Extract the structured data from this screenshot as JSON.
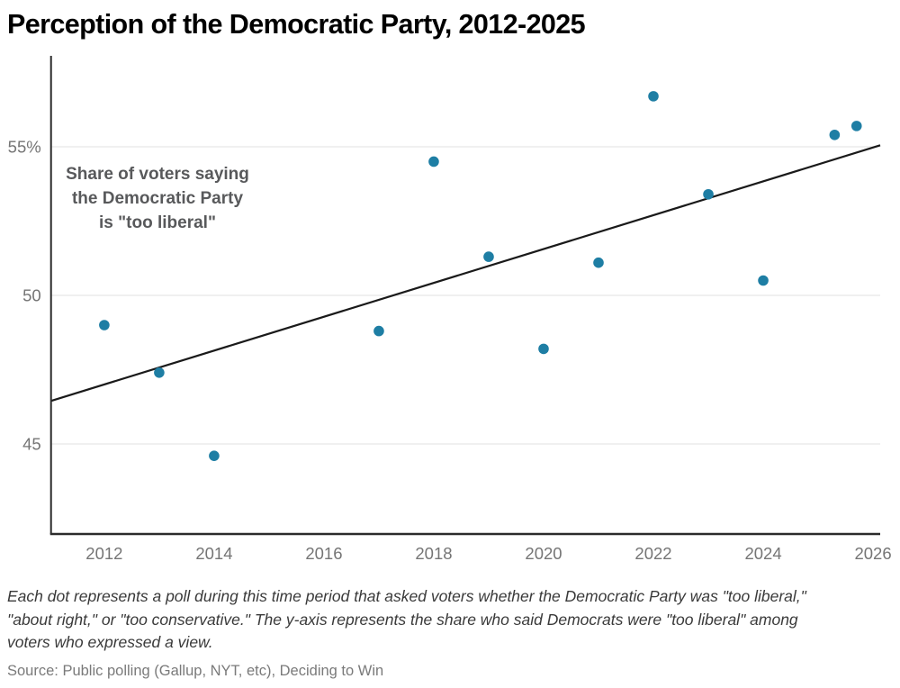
{
  "title": "Perception of the Democratic Party, 2012-2025",
  "chart_data": {
    "type": "scatter",
    "title": "Perception of the Democratic Party, 2012-2025",
    "annotation": "Share of voters saying\nthe Democratic Party\nis \"too liberal\"",
    "ylabel_note": "Share of voters saying the Democratic Party is \"too liberal\" (%)",
    "points": [
      {
        "x": 2012,
        "y": 49.0
      },
      {
        "x": 2013,
        "y": 47.4
      },
      {
        "x": 2014,
        "y": 44.6
      },
      {
        "x": 2017,
        "y": 48.8
      },
      {
        "x": 2018,
        "y": 54.5
      },
      {
        "x": 2019,
        "y": 51.3
      },
      {
        "x": 2020,
        "y": 48.2
      },
      {
        "x": 2021,
        "y": 51.1
      },
      {
        "x": 2022,
        "y": 56.7
      },
      {
        "x": 2023,
        "y": 53.4
      },
      {
        "x": 2024,
        "y": 50.5
      },
      {
        "x": 2025.3,
        "y": 55.4
      },
      {
        "x": 2025.7,
        "y": 55.7
      }
    ],
    "trend_line": {
      "x1": 2011.03,
      "y1": 46.45,
      "x2": 2026.13,
      "y2": 55.05
    },
    "x_ticks": [
      {
        "v": 2012,
        "label": "2012"
      },
      {
        "v": 2014,
        "label": "2014"
      },
      {
        "v": 2016,
        "label": "2016"
      },
      {
        "v": 2018,
        "label": "2018"
      },
      {
        "v": 2020,
        "label": "2020"
      },
      {
        "v": 2022,
        "label": "2022"
      },
      {
        "v": 2024,
        "label": "2024"
      },
      {
        "v": 2026,
        "label": "2026"
      }
    ],
    "y_ticks": [
      {
        "v": 45,
        "label": "45"
      },
      {
        "v": 50,
        "label": "50"
      },
      {
        "v": 55,
        "label": "55%"
      }
    ],
    "axes": {
      "x_domain": [
        2011.03,
        2026.13
      ],
      "y_domain": [
        41.97,
        58.06
      ],
      "grid": "horizontal-only",
      "legend": "none"
    },
    "colors": {
      "dot": "#1e7ea4",
      "trend": "#1a1a1a",
      "axis": "#2b2b2b",
      "gridline": "#e8e8e8",
      "tick_label": "#757575"
    }
  },
  "footnote": "Each dot represents a poll during this time period that asked voters whether the Democratic Party was \"too liberal,\"\n\"about right,\" or \"too conservative.\" The y-axis represents the share who said Democrats were \"too liberal\" among\nvoters who expressed a view.",
  "source": "Source: Public polling (Gallup, NYT, etc), Deciding to Win"
}
